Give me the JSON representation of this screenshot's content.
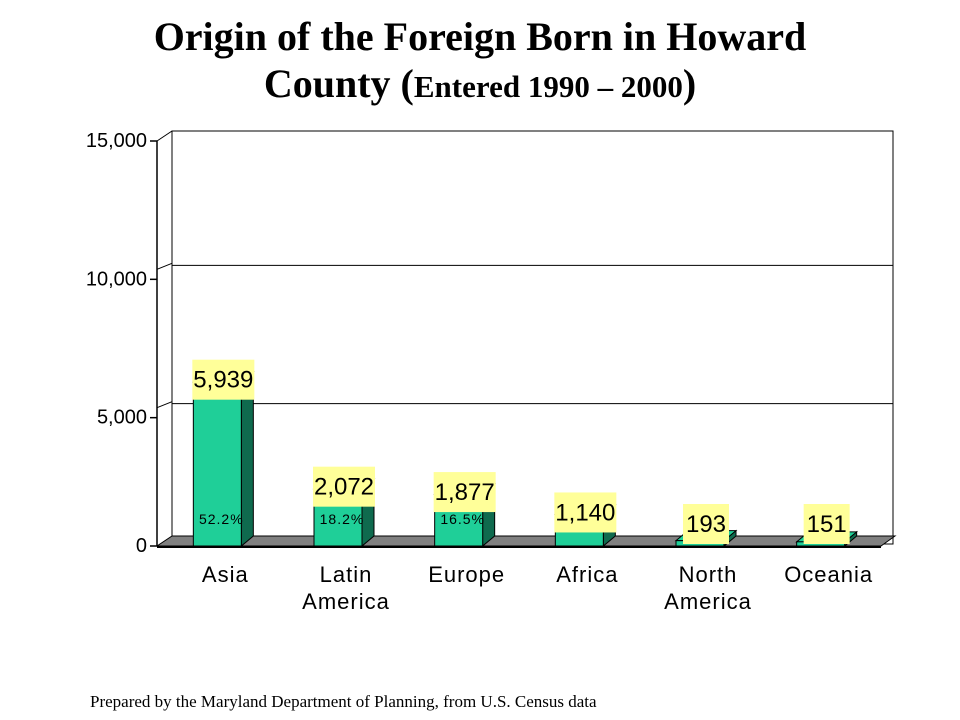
{
  "title": {
    "main": "Origin of the Foreign Born in Howard",
    "line2_prefix": "County (",
    "line2_small": "Entered 1990 – 2000",
    "line2_suffix": ")"
  },
  "footer": "Prepared by the Maryland Department of Planning, from U.S. Census data",
  "chart_data": {
    "type": "bar",
    "categories": [
      [
        "Asia"
      ],
      [
        "Latin",
        "America"
      ],
      [
        "Europe"
      ],
      [
        "Africa"
      ],
      [
        "North",
        "America"
      ],
      [
        "Oceania"
      ]
    ],
    "values": [
      5939,
      2072,
      1877,
      1140,
      193,
      151
    ],
    "value_labels": [
      "5,939",
      "2,072",
      "1,877",
      "1,140",
      "193",
      "151"
    ],
    "percent_labels": [
      "52.2%",
      "18.2%",
      "16.5%",
      "",
      "",
      ""
    ],
    "yticks": [
      0,
      5000,
      10000,
      15000
    ],
    "ytick_labels": [
      "0",
      "5,000",
      "10,000",
      "15,000"
    ],
    "ylim": [
      0,
      15000
    ],
    "grid": true,
    "bar_color": "#1fcf98",
    "bar_side_color": "#0f6a4e",
    "label_bg": "#ffff99",
    "floor_color": "#808080"
  }
}
